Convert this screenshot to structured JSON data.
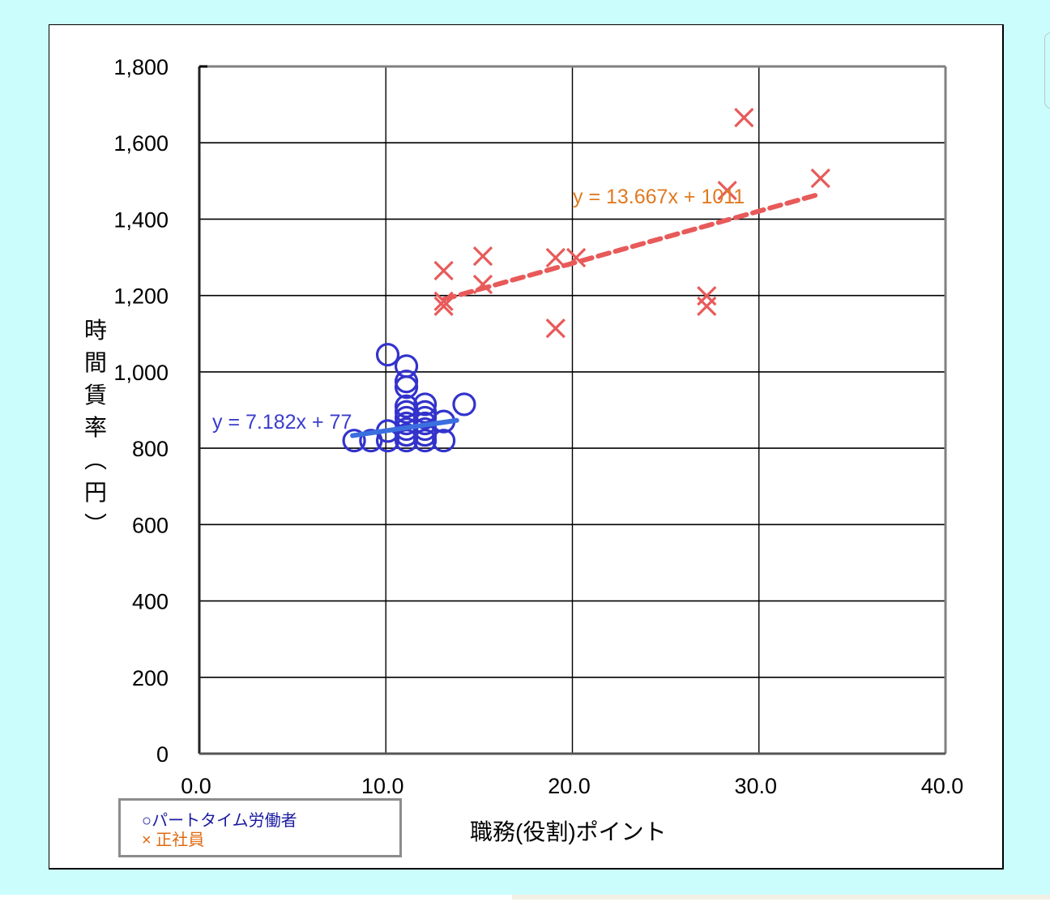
{
  "chart_data": {
    "type": "scatter",
    "title": "",
    "xlabel": "職務(役割)ポイント",
    "ylabel": "時間賃率(円)",
    "xlim": [
      0,
      40
    ],
    "ylim": [
      0,
      1800
    ],
    "x_ticks": [
      "0.0",
      "10.0",
      "20.0",
      "30.0",
      "40.0"
    ],
    "y_ticks": [
      "0",
      "200",
      "400",
      "600",
      "800",
      "1,000",
      "1,200",
      "1,400",
      "1,600",
      "1,800"
    ],
    "grid": true,
    "legend_position": "bottom-left",
    "series": [
      {
        "name": "パートタイム労働者",
        "marker": "circle",
        "color": "#3333cc",
        "points": [
          [
            8.3,
            820
          ],
          [
            9.2,
            820
          ],
          [
            10.1,
            820
          ],
          [
            10.1,
            845
          ],
          [
            10.1,
            1045
          ],
          [
            11.1,
            820
          ],
          [
            11.1,
            835
          ],
          [
            11.1,
            850
          ],
          [
            11.1,
            865
          ],
          [
            11.1,
            880
          ],
          [
            11.1,
            895
          ],
          [
            11.1,
            910
          ],
          [
            11.1,
            960
          ],
          [
            11.1,
            975
          ],
          [
            11.1,
            1015
          ],
          [
            12.1,
            820
          ],
          [
            12.1,
            835
          ],
          [
            12.1,
            850
          ],
          [
            12.1,
            865
          ],
          [
            12.1,
            880
          ],
          [
            12.1,
            895
          ],
          [
            12.1,
            915
          ],
          [
            13.1,
            820
          ],
          [
            13.1,
            870
          ],
          [
            14.2,
            915
          ]
        ],
        "trendline": {
          "equation": "y = 7.182x + 77",
          "color": "#3b6fe0",
          "style": "solid",
          "x_range": [
            8.3,
            13.8
          ]
        }
      },
      {
        "name": "正社員",
        "marker": "x",
        "color": "#e85a5a",
        "points": [
          [
            13.1,
            1265
          ],
          [
            13.1,
            1185
          ],
          [
            13.1,
            1172
          ],
          [
            15.2,
            1303
          ],
          [
            15.2,
            1229
          ],
          [
            19.1,
            1299
          ],
          [
            19.1,
            1114
          ],
          [
            20.2,
            1299
          ],
          [
            27.2,
            1199
          ],
          [
            27.2,
            1172
          ],
          [
            28.3,
            1475
          ],
          [
            29.2,
            1666
          ],
          [
            33.3,
            1507
          ]
        ],
        "trendline": {
          "equation": "y = 13.667x + 1011",
          "color": "#e85a5a",
          "style": "dashed",
          "x_range": [
            13.1,
            33.3
          ]
        }
      }
    ]
  },
  "legend": {
    "part_time": "○パートタイム労働者",
    "full_time": "× 正社員"
  },
  "axis": {
    "x_label": "職務(役割)ポイント",
    "y_label_chars": [
      "時",
      "間",
      "賃",
      "率",
      "︵",
      "円",
      "︶"
    ]
  },
  "annotations": {
    "part_time_equation": "y = 7.182x + 77",
    "full_time_equation": "y = 13.667x + 1011"
  }
}
